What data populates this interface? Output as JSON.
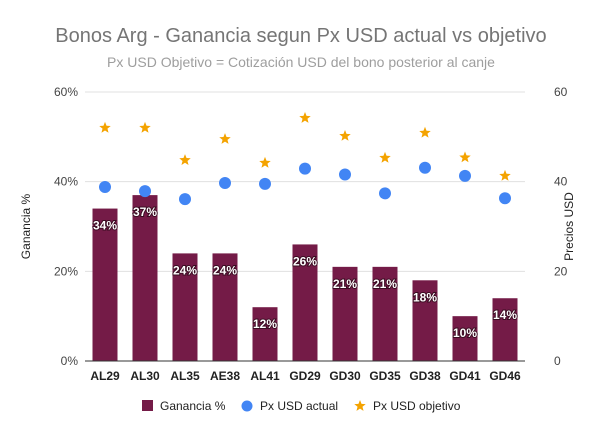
{
  "chart_data": {
    "type": "bar",
    "title": "Bonos Arg - Ganancia segun Px USD actual vs objetivo",
    "subtitle": "Px USD Objetivo = Cotización USD del bono posterior al canje",
    "categories": [
      "AL29",
      "AL30",
      "AL35",
      "AE38",
      "AL41",
      "GD29",
      "GD30",
      "GD35",
      "GD38",
      "GD41",
      "GD46"
    ],
    "series": [
      {
        "name": "Ganancia %",
        "type": "bar",
        "axis": "left",
        "color": "#741b47",
        "values": [
          34,
          37,
          24,
          24,
          12,
          26,
          21,
          21,
          18,
          10,
          14
        ],
        "labels": [
          "34%",
          "37%",
          "24%",
          "24%",
          "12%",
          "26%",
          "21%",
          "21%",
          "18%",
          "10%",
          "14%"
        ]
      },
      {
        "name": "Px USD actual",
        "type": "scatter",
        "marker": "circle",
        "axis": "right",
        "color": "#4285f4",
        "values": [
          38.8,
          37.9,
          36.1,
          39.7,
          39.5,
          42.9,
          41.6,
          37.4,
          43.1,
          41.3,
          36.3
        ]
      },
      {
        "name": "Px USD objetivo",
        "type": "scatter",
        "marker": "star",
        "axis": "right",
        "color": "#f4a300",
        "values": [
          52.0,
          52.0,
          44.8,
          49.5,
          44.2,
          54.2,
          50.2,
          45.3,
          50.9,
          45.4,
          41.3
        ]
      }
    ],
    "y_left": {
      "label": "Ganancia %",
      "min": 0,
      "max": 60,
      "ticks": [
        "0%",
        "20%",
        "40%",
        "60%"
      ]
    },
    "y_right": {
      "label": "Precios USD",
      "min": 0,
      "max": 60,
      "ticks": [
        "0",
        "20",
        "40",
        "60"
      ]
    },
    "grid": true,
    "legend": "bottom"
  }
}
